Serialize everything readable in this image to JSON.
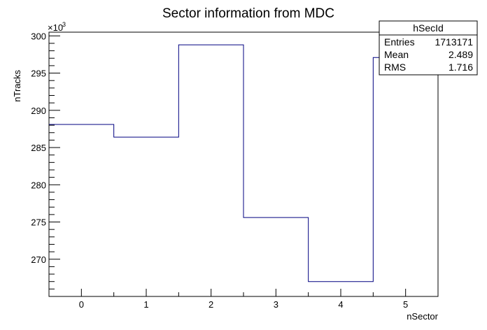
{
  "chart_data": {
    "type": "bar",
    "style": "step-histogram",
    "title": "Sector information from MDC",
    "xlabel": "nSector",
    "ylabel": "nTracks",
    "y_exponent_label": "×10",
    "y_exponent_power": "3",
    "xlim": [
      -0.5,
      5.5
    ],
    "ylim": [
      265000,
      300500
    ],
    "x_ticks": [
      0,
      1,
      2,
      3,
      4,
      5
    ],
    "x_tick_labels": [
      "0",
      "1",
      "2",
      "3",
      "4",
      "5"
    ],
    "y_ticks": [
      270000,
      275000,
      280000,
      285000,
      290000,
      295000,
      300000
    ],
    "y_tick_labels": [
      "270",
      "275",
      "280",
      "285",
      "290",
      "295",
      "300"
    ],
    "bin_edges": [
      -0.5,
      0.5,
      1.5,
      2.5,
      3.5,
      4.5,
      5.5
    ],
    "categories": [
      "0",
      "1",
      "2",
      "3",
      "4",
      "5"
    ],
    "values": [
      288100,
      286400,
      298800,
      275600,
      267000,
      297100
    ],
    "line_color": "#000080",
    "stats": {
      "name": "hSecId",
      "rows": [
        {
          "label": "Entries",
          "value": "1713171"
        },
        {
          "label": "Mean",
          "value": "2.489"
        },
        {
          "label": "RMS",
          "value": "1.716"
        }
      ]
    }
  }
}
